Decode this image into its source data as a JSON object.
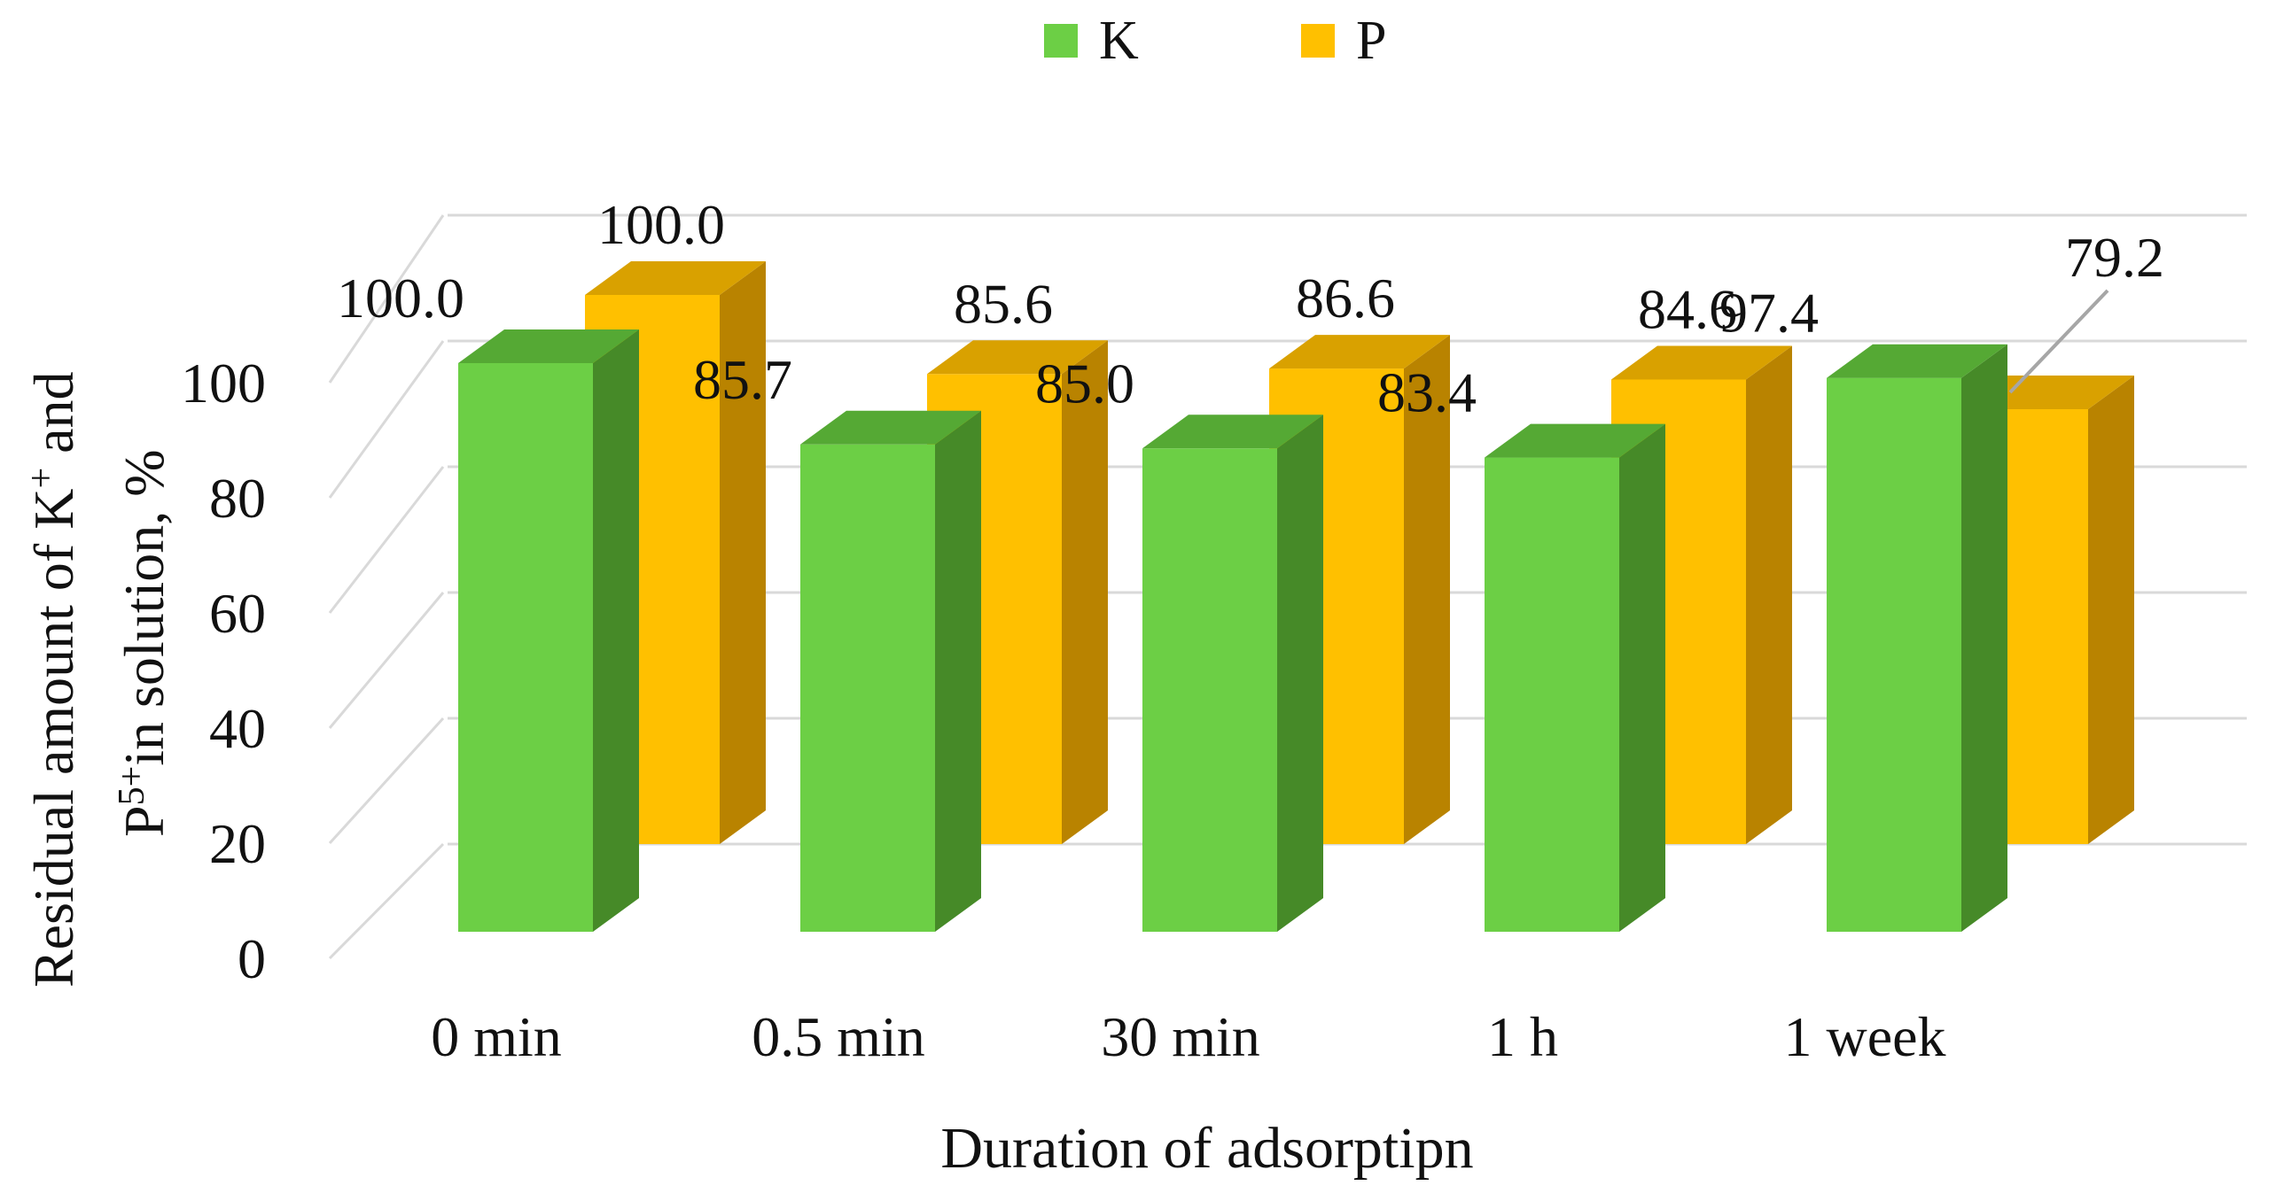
{
  "chart_data": {
    "type": "bar",
    "subtype": "3d-clustered-column",
    "title": "",
    "xlabel": "Duration of adsorptipn",
    "ylabel": {
      "line1": "Residual amount of K",
      "line1_sup": "+",
      "line1_tail": " and",
      "line2_pre": "P",
      "line2_sup": "5+",
      "line2_tail": "in solution, %"
    },
    "categories": [
      "0 min",
      "0.5 min",
      "30 min",
      "1 h",
      "1 week"
    ],
    "series": [
      {
        "name": "K",
        "color": "#6ccf45",
        "side_color": "#468a28",
        "top_color": "#55a934",
        "values": [
          100.0,
          85.7,
          85.0,
          83.4,
          97.4
        ],
        "labels": [
          "100.0",
          "85.7",
          "85.0",
          "83.4",
          "97.4"
        ]
      },
      {
        "name": "P",
        "color": "#ffc000",
        "side_color": "#b98300",
        "top_color": "#d9a100",
        "values": [
          100.0,
          85.6,
          86.6,
          84.6,
          79.2
        ],
        "labels": [
          "100.0",
          "85.6",
          "86.6",
          "84.6",
          "79.2"
        ]
      }
    ],
    "ylim": [
      0,
      100
    ],
    "yticks": [
      "0",
      "20",
      "40",
      "60",
      "80",
      "100"
    ],
    "grid": true,
    "legend_position": "top-center"
  }
}
